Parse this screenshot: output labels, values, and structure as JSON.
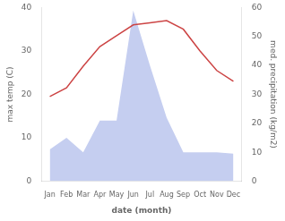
{
  "chart_data": {
    "type": "line",
    "categories": [
      "Jan",
      "Feb",
      "Mar",
      "Apr",
      "May",
      "Jun",
      "Jul",
      "Aug",
      "Sep",
      "Oct",
      "Nov",
      "Dec"
    ],
    "series": [
      {
        "type": "area",
        "axis": "y2",
        "color": "#c5cef0",
        "values": [
          11,
          15,
          10,
          21,
          21,
          59,
          40,
          22,
          10,
          10,
          10,
          9.5
        ]
      },
      {
        "type": "line",
        "color": "#cc4444",
        "values": [
          19.5,
          21.5,
          26.5,
          31.0,
          33.5,
          36.0,
          36.5,
          37.0,
          35.0,
          30.0,
          25.5,
          23.0
        ]
      }
    ],
    "xlabel": "date (month)",
    "ylabel": "max temp (C)",
    "y2label": "med. precipitation (kg/m2)",
    "ylim": [
      0,
      40
    ],
    "yticks": [
      0,
      10,
      20,
      30,
      40
    ],
    "y2lim": [
      0,
      60
    ],
    "y2ticks": [
      0,
      10,
      20,
      30,
      40,
      50,
      60
    ],
    "grid": false
  }
}
